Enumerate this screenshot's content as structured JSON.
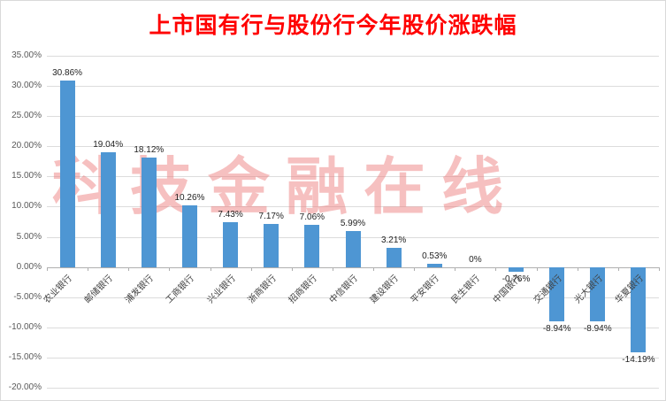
{
  "title": "上市国有行与股份行今年股价涨跌幅",
  "watermark": "科技金融在线",
  "chart_data": {
    "type": "bar",
    "title": "上市国有行与股份行今年股价涨跌幅",
    "categories": [
      "农业银行",
      "邮储银行",
      "浦发银行",
      "工商银行",
      "兴业银行",
      "浙商银行",
      "招商银行",
      "中信银行",
      "建设银行",
      "平安银行",
      "民生银行",
      "中国银行",
      "交通银行",
      "光大银行",
      "华夏银行"
    ],
    "values": [
      30.86,
      19.04,
      18.12,
      10.26,
      7.43,
      7.17,
      7.06,
      5.99,
      3.21,
      0.53,
      0,
      -0.76,
      -8.94,
      -8.94,
      -14.19
    ],
    "value_labels": [
      "30.86%",
      "19.04%",
      "18.12%",
      "10.26%",
      "7.43%",
      "7.17%",
      "7.06%",
      "5.99%",
      "3.21%",
      "0.53%",
      "0%",
      "-0.76%",
      "-8.94%",
      "-8.94%",
      "-14.19%"
    ],
    "xlabel": "",
    "ylabel": "",
    "ylim": [
      -20,
      35
    ],
    "ytick_step": 5,
    "ytick_labels": [
      "35.00%",
      "30.00%",
      "25.00%",
      "20.00%",
      "15.00%",
      "10.00%",
      "5.00%",
      "0.00%",
      "-5.00%",
      "-10.00%",
      "-15.00%",
      "-20.00%"
    ],
    "grid": true,
    "legend": false
  },
  "colors": {
    "title": "#FF0000",
    "bar": "#4E96D3",
    "watermark": "rgba(235,115,115,0.45)",
    "grid": "#DCDCDC",
    "zero_axis": "#AFAFAF",
    "tick_text": "#595959",
    "value_text": "#1F1F1F",
    "xlabel_text": "#404040"
  }
}
